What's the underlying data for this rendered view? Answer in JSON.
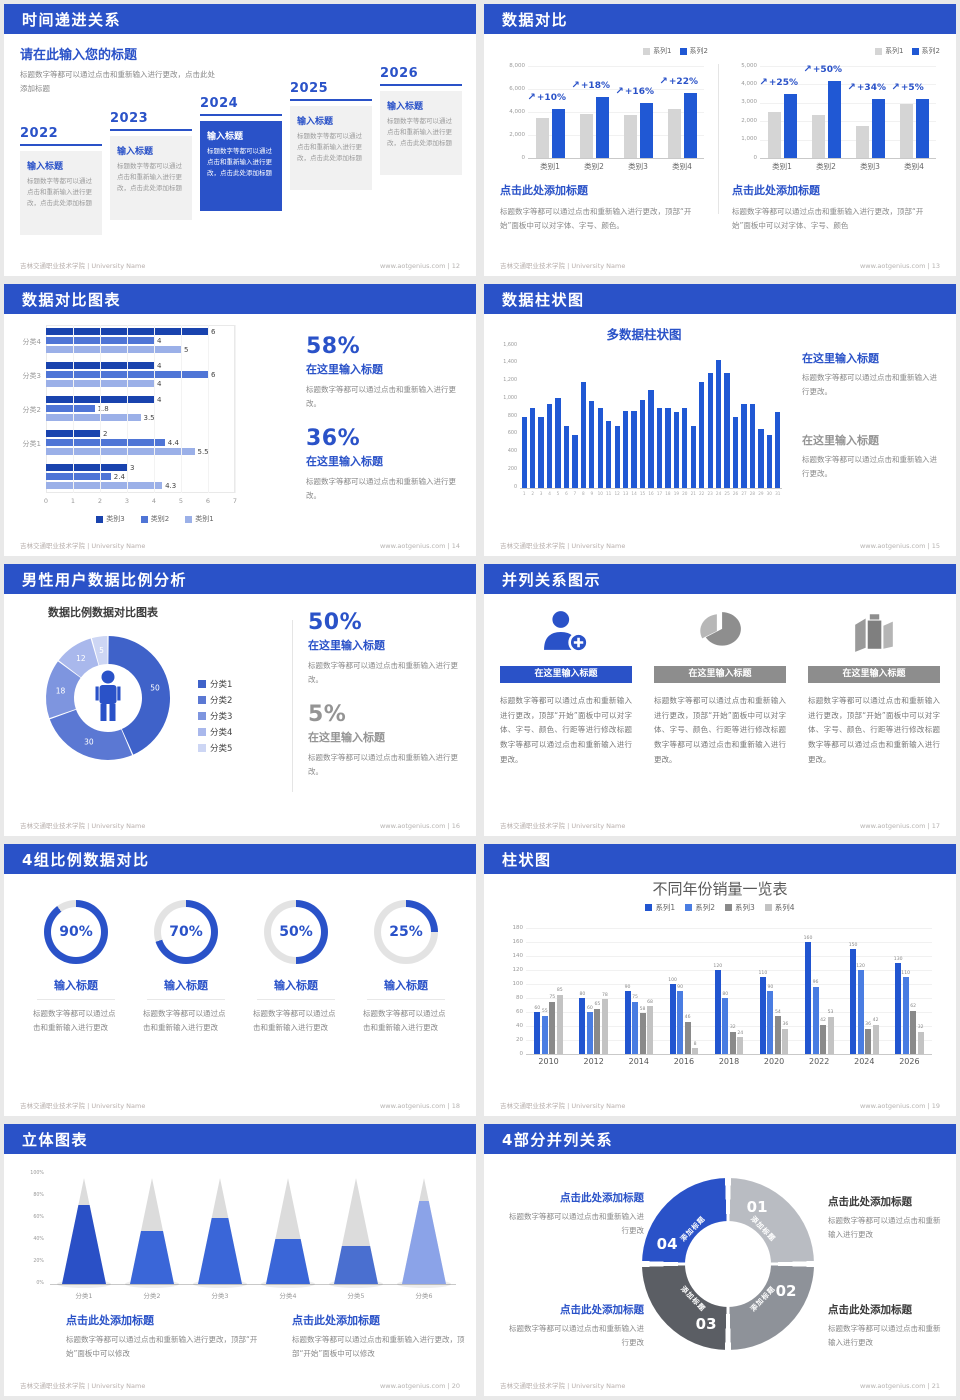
{
  "footer": {
    "left": "吉林交通职业技术学院 | University Name",
    "url": "www.aotgenius.com"
  },
  "colors": {
    "primary": "#2a52c8",
    "bar_blue": "#2058d4",
    "bar_gray": "#d5d5d5",
    "navy": "#1943ae",
    "mid_blue": "#4f75d6",
    "light_blue": "#9bb0e8",
    "s19": [
      "#2155d0",
      "#4a7de2",
      "#8a8a8a",
      "#c3c3c3"
    ],
    "donut": [
      "#3f62c9",
      "#5b78d3",
      "#7e95df",
      "#a9b8ec",
      "#cdd6f4"
    ],
    "wheel": [
      "#b9bcc2",
      "#8e9299",
      "#5b5e64",
      "#2a52c8"
    ],
    "ring_track": "#e3e3e3",
    "cone": [
      "#2a50c6",
      "#3a66d8",
      "#3a66d8",
      "#3a66d8",
      "#4a6fd0",
      "#8ba3e8"
    ]
  },
  "slides": [
    {
      "title": "时间递进关系",
      "page": "12",
      "heading": "请在此输入您的标题",
      "heading_body": "标题数字等都可以通过点击和重新输入进行更改，点击此处添加标题",
      "milestones": [
        {
          "year": "2022",
          "box_title": "输入标题",
          "box_body": "标题数字等都可以通过点击和重新输入进行更改，点击此处添加标题",
          "highlight": false
        },
        {
          "year": "2023",
          "box_title": "输入标题",
          "box_body": "标题数字等都可以通过点击和重新输入进行更改，点击此处添加标题",
          "highlight": false
        },
        {
          "year": "2024",
          "box_title": "输入标题",
          "box_body": "标题数字等都可以通过点击和重新输入进行更改，点击此处添加标题",
          "highlight": true
        },
        {
          "year": "2025",
          "box_title": "输入标题",
          "box_body": "标题数字等都可以通过点击和重新输入进行更改，点击此处添加标题",
          "highlight": false
        },
        {
          "year": "2026",
          "box_title": "输入标题",
          "box_body": "标题数字等都可以通过点击和重新输入进行更改，点击此处添加标题",
          "highlight": false
        }
      ]
    },
    {
      "title": "数据对比",
      "page": "13",
      "panels": [
        {
          "heading": "点击此处添加标题",
          "body": "标题数字等都可以通过点击和重新输入进行更改，顶部“开始”面板中可以对字体、字号、颜色。",
          "chart_data": {
            "type": "bar",
            "categories": [
              "类别1",
              "类别2",
              "类别3",
              "类别4"
            ],
            "series": [
              {
                "name": "系列1",
                "values": [
                  3500,
                  3800,
                  3700,
                  4300
                ]
              },
              {
                "name": "系列2",
                "values": [
                  4300,
                  5300,
                  4800,
                  5700
                ]
              }
            ],
            "annotations": [
              "+10%",
              "+18%",
              "+16%",
              "+22%"
            ],
            "ylim": [
              0,
              8000
            ],
            "ytick_step": 2000
          }
        },
        {
          "heading": "点击此处添加标题",
          "body": "标题数字等都可以通过点击和重新输入进行更改，顶部“开始”面板中可以对字体、字号、颜色",
          "chart_data": {
            "type": "bar",
            "categories": [
              "类别1",
              "类别2",
              "类别3",
              "类别4"
            ],
            "series": [
              {
                "name": "系列1",
                "values": [
                  2500,
                  2350,
                  1750,
                  2950
                ]
              },
              {
                "name": "系列2",
                "values": [
                  3500,
                  4200,
                  3200,
                  3200
                ]
              }
            ],
            "annotations": [
              "+25%",
              "+50%",
              "+34%",
              "+5%"
            ],
            "ylim": [
              0,
              5000
            ],
            "ytick_step": 1000
          }
        }
      ]
    },
    {
      "title": "数据对比图表",
      "page": "14",
      "chart_data": {
        "type": "bar-horizontal",
        "groups": [
          "分类4",
          "分类3",
          "分类2",
          "分类1",
          ""
        ],
        "series": [
          {
            "name": "类别3",
            "values": [
              6,
              4,
              4,
              2,
              3
            ]
          },
          {
            "name": "类别2",
            "values": [
              4,
              6,
              1.8,
              4.4,
              2.4
            ]
          },
          {
            "name": "类别1",
            "values": [
              5,
              4,
              3.5,
              5.5,
              4.3
            ]
          }
        ],
        "xlim": [
          0,
          7
        ]
      },
      "stats": [
        {
          "value": "58%",
          "heading": "在这里输入标题",
          "body": "标题数字等都可以通过点击和重新输入进行更改。"
        },
        {
          "value": "36%",
          "heading": "在这里输入标题",
          "body": "标题数字等都可以通过点击和重新输入进行更改。"
        }
      ]
    },
    {
      "title": "数据柱状图",
      "page": "15",
      "chart_title": "多数据柱状图",
      "chart_data": {
        "type": "bar",
        "categories": [
          "1",
          "2",
          "3",
          "4",
          "5",
          "6",
          "7",
          "8",
          "9",
          "10",
          "11",
          "12",
          "13",
          "14",
          "15",
          "16",
          "17",
          "18",
          "19",
          "20",
          "21",
          "22",
          "23",
          "24",
          "25",
          "26",
          "27",
          "28",
          "29",
          "30",
          "31"
        ],
        "series": [
          {
            "name": "数据",
            "values": [
              800,
              900,
              800,
              950,
              1020,
              700,
              600,
              1200,
              980,
              900,
              760,
              700,
              870,
              870,
              990,
              1100,
              900,
              900,
              860,
              900,
              700,
              1200,
              1300,
              1440,
              1300,
              800,
              950,
              950,
              660,
              600,
              860
            ]
          }
        ],
        "ylim": [
          0,
          1600
        ],
        "ytick_step": 200
      },
      "stats": [
        {
          "heading": "在这里输入标题",
          "body": "标题数字等都可以通过点击和重新输入进行更改。"
        },
        {
          "heading": "在这里输入标题",
          "body": "标题数字等都可以通过点击和重新输入进行更改。"
        }
      ]
    },
    {
      "title": "男性用户数据比例分析",
      "page": "16",
      "chart_title": "数据比例数据对比图表",
      "chart_data": {
        "type": "pie",
        "labels": [
          "分类1",
          "分类2",
          "分类3",
          "分类4",
          "分类5"
        ],
        "values": [
          50,
          30,
          18,
          12,
          5
        ]
      },
      "stats": [
        {
          "value": "50%",
          "heading": "在这里输入标题",
          "body": "标题数字等都可以通过点击和重新输入进行更改。"
        },
        {
          "value": "5%",
          "heading": "在这里输入标题",
          "body": "标题数字等都可以通过点击和重新输入进行更改。"
        }
      ]
    },
    {
      "title": "并列关系图示",
      "page": "17",
      "columns": [
        {
          "icon": "person-plus-icon",
          "header": "在这里输入标题",
          "highlight": true,
          "body": "标题数字等都可以通过点击和重新输入进行更改，顶部“开始”面板中可以对字体、字号、颜色、行距等进行修改标题数字等都可以通过点击和重新输入进行更改。"
        },
        {
          "icon": "pie-chart-icon",
          "header": "在这里输入标题",
          "highlight": false,
          "body": "标题数字等都可以通过点击和重新输入进行更改，顶部“开始”面板中可以对字体、字号、颜色、行距等进行修改标题数字等都可以通过点击和重新输入进行更改。"
        },
        {
          "icon": "building-icon",
          "header": "在这里输入标题",
          "highlight": false,
          "body": "标题数字等都可以通过点击和重新输入进行更改，顶部“开始”面板中可以对字体、字号、颜色、行距等进行修改标题数字等都可以通过点击和重新输入进行更改。"
        }
      ]
    },
    {
      "title": "4组比例数据对比",
      "page": "18",
      "items": [
        {
          "percent": 90,
          "label": "90%",
          "heading": "输入标题",
          "body": "标题数字等都可以通过点击和重新输入进行更改"
        },
        {
          "percent": 70,
          "label": "70%",
          "heading": "输入标题",
          "body": "标题数字等都可以通过点击和重新输入进行更改"
        },
        {
          "percent": 50,
          "label": "50%",
          "heading": "输入标题",
          "body": "标题数字等都可以通过点击和重新输入进行更改"
        },
        {
          "percent": 25,
          "label": "25%",
          "heading": "输入标题",
          "body": "标题数字等都可以通过点击和重新输入进行更改"
        }
      ]
    },
    {
      "title": "柱状图",
      "page": "19",
      "chart_title": "不同年份销量一览表",
      "chart_data": {
        "type": "bar",
        "categories": [
          "2010",
          "2012",
          "2014",
          "2016",
          "2018",
          "2020",
          "2022",
          "2024",
          "2026"
        ],
        "series": [
          {
            "name": "系列1",
            "values": [
              60,
              80,
              90,
              100,
              120,
              110,
              160,
              150,
              130
            ]
          },
          {
            "name": "系列2",
            "values": [
              55,
              60,
              75,
              90,
              80,
              90,
              96,
              120,
              110
            ]
          },
          {
            "name": "系列3",
            "values": [
              75,
              65,
              58,
              46,
              32,
              54,
              42,
              36,
              62
            ]
          },
          {
            "name": "系列4",
            "values": [
              85,
              78,
              68,
              8,
              24,
              36,
              53,
              42,
              32
            ]
          }
        ],
        "ylim": [
          0,
          180
        ],
        "ytick_step": 20
      }
    },
    {
      "title": "立体图表",
      "page": "20",
      "chart_data": {
        "type": "cone",
        "categories": [
          "分类1",
          "分类2",
          "分类3",
          "分类4",
          "分类5",
          "分类6"
        ],
        "values": [
          75,
          50,
          62,
          42,
          36,
          78
        ],
        "ylim": [
          0,
          100
        ]
      },
      "notes": [
        {
          "heading": "点击此处添加标题",
          "body": "标题数字等都可以通过点击和重新输入进行更改，顶部“开始”面板中可以修改"
        },
        {
          "heading": "点击此处添加标题",
          "body": "标题数字等都可以通过点击和重新输入进行更改，顶部“开始”面板中可以修改"
        }
      ]
    },
    {
      "title": "4部分并列关系",
      "page": "21",
      "segments": [
        {
          "num": "01",
          "label": "添加标题"
        },
        {
          "num": "02",
          "label": "添加标题"
        },
        {
          "num": "03",
          "label": "添加标题"
        },
        {
          "num": "04",
          "label": "添加标题"
        }
      ],
      "notes": [
        {
          "heading": "点击此处添加标题",
          "body": "标题数字等都可以通过点击和重新输入进行更改"
        },
        {
          "heading": "点击此处添加标题",
          "body": "标题数字等都可以通过点击和重新输入进行更改"
        },
        {
          "heading": "点击此处添加标题",
          "body": "标题数字等都可以通过点击和重新输入进行更改"
        },
        {
          "heading": "点击此处添加标题",
          "body": "标题数字等都可以通过点击和重新输入进行更改"
        }
      ]
    }
  ]
}
